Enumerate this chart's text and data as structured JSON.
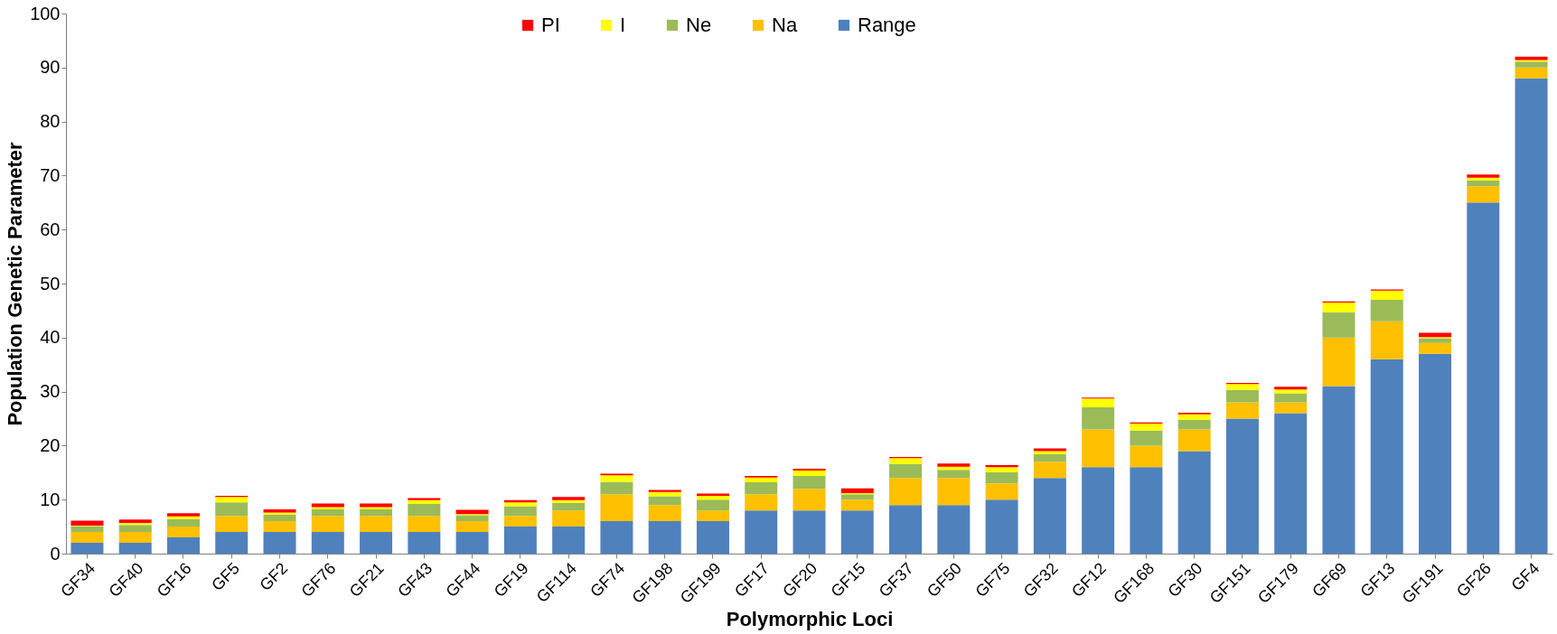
{
  "chart_data": {
    "type": "bar",
    "stacked": true,
    "xlabel": "Polymorphic Loci",
    "ylabel": "Population Genetic Parameter",
    "categories": [
      "GF34",
      "GF40",
      "GF16",
      "GF5",
      "GF2",
      "GF76",
      "GF21",
      "GF43",
      "GF44",
      "GF19",
      "GF114",
      "GF74",
      "GF198",
      "GF199",
      "GF17",
      "GF20",
      "GF15",
      "GF37",
      "GF50",
      "GF75",
      "GF32",
      "GF12",
      "GF168",
      "GF30",
      "GF151",
      "GF179",
      "GF69",
      "GF13",
      "GF191",
      "GF26",
      "GF4"
    ],
    "series": [
      {
        "name": "Range",
        "color": "#4f81bd",
        "values": [
          2,
          2,
          3,
          4,
          4,
          4,
          4,
          4,
          4,
          5,
          5,
          6,
          6,
          6,
          8,
          8,
          8,
          9,
          9,
          10,
          14,
          16,
          16,
          19,
          25,
          26,
          31,
          36,
          37,
          65,
          88
        ]
      },
      {
        "name": "Na",
        "color": "#ffc000",
        "values": [
          2,
          2,
          2,
          3,
          2,
          3,
          3,
          3,
          2,
          2,
          3,
          5,
          3,
          2,
          3,
          4,
          2,
          5,
          5,
          3,
          3,
          7,
          4,
          4,
          3,
          2,
          9,
          7,
          2,
          3,
          2
        ]
      },
      {
        "name": "Ne",
        "color": "#9bbb59",
        "values": [
          1.1,
          1.3,
          1.4,
          2.5,
          1.2,
          1.2,
          1.2,
          2.2,
          1.1,
          1.8,
          1.4,
          2.3,
          1.6,
          2.0,
          2.2,
          2.4,
          1.0,
          2.6,
          1.5,
          2.1,
          1.4,
          4.1,
          2.8,
          1.8,
          2.3,
          1.7,
          4.7,
          4.0,
          0.9,
          1.1,
          1.1
        ]
      },
      {
        "name": "I",
        "color": "#ffff00",
        "values": [
          0.1,
          0.4,
          0.5,
          1.0,
          0.4,
          0.4,
          0.4,
          0.7,
          0.2,
          0.7,
          0.5,
          1.2,
          0.8,
          0.7,
          0.9,
          1.0,
          0.2,
          1.1,
          0.6,
          0.9,
          0.6,
          1.6,
          1.3,
          1.0,
          1.1,
          0.7,
          1.8,
          1.7,
          0.2,
          0.5,
          0.3
        ]
      },
      {
        "name": "PI",
        "color": "#ff0000",
        "values": [
          0.9,
          0.6,
          0.6,
          0.2,
          0.6,
          0.7,
          0.7,
          0.4,
          0.8,
          0.4,
          0.6,
          0.3,
          0.4,
          0.4,
          0.3,
          0.3,
          0.9,
          0.2,
          0.6,
          0.4,
          0.5,
          0.2,
          0.2,
          0.3,
          0.2,
          0.5,
          0.2,
          0.2,
          0.8,
          0.6,
          0.6
        ]
      }
    ],
    "ylim": [
      0,
      100
    ],
    "yticks": [
      0,
      10,
      20,
      30,
      40,
      50,
      60,
      70,
      80,
      90,
      100
    ],
    "grid": false,
    "legend": "top"
  }
}
